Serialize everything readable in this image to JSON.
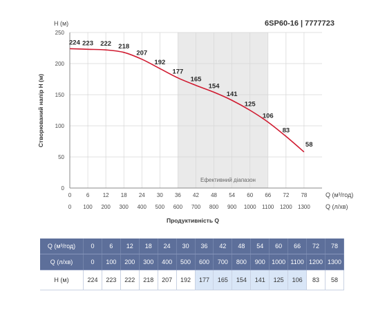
{
  "chart_data": {
    "type": "line",
    "title": "6SP60-16 | 7777723",
    "ylabel": "Створюваний напір Н (м)",
    "y_axis_caption": "Н (м)",
    "xlabel": "Продуктивність Q",
    "x_unit_primary": "Q (м³/год)",
    "x_unit_secondary": "Q (л/хв)",
    "ylim": [
      0,
      250
    ],
    "y_ticks": [
      "0",
      "50",
      "100",
      "150",
      "200",
      "250"
    ],
    "xlim": [
      0,
      84
    ],
    "x_ticks": [
      "0",
      "6",
      "12",
      "18",
      "24",
      "30",
      "36",
      "42",
      "48",
      "54",
      "60",
      "66",
      "72",
      "78"
    ],
    "x_ticks_secondary": [
      "0",
      "100",
      "200",
      "300",
      "400",
      "500",
      "600",
      "700",
      "800",
      "900",
      "1000",
      "1100",
      "1200",
      "1300"
    ],
    "efficient_range_label": "Ефективний діапазон",
    "efficient_range": [
      36,
      66
    ],
    "grid": true,
    "line_color": "#d0192f",
    "band_color": "#eaeaea",
    "series": [
      {
        "x": [
          0,
          6,
          12,
          18,
          24,
          30,
          36,
          42,
          48,
          54,
          60,
          66,
          72,
          78
        ],
        "values": [
          224,
          223,
          222,
          218,
          207,
          192,
          177,
          165,
          154,
          141,
          125,
          106,
          83,
          58
        ]
      }
    ]
  },
  "table": {
    "header_color": "#5d6f9a",
    "highlight_color": "#d9e6f7",
    "rows": [
      {
        "label": "Q (м³/год)",
        "cells": [
          "0",
          "6",
          "12",
          "18",
          "24",
          "30",
          "36",
          "42",
          "48",
          "54",
          "60",
          "66",
          "72",
          "78"
        ]
      },
      {
        "label": "Q (л/хв)",
        "cells": [
          "0",
          "100",
          "200",
          "300",
          "400",
          "500",
          "600",
          "700",
          "800",
          "900",
          "1000",
          "1100",
          "1200",
          "1300"
        ]
      },
      {
        "label": "Н (м)",
        "cells": [
          "224",
          "223",
          "222",
          "218",
          "207",
          "192",
          "177",
          "165",
          "154",
          "141",
          "125",
          "106",
          "83",
          "58"
        ]
      }
    ],
    "highlighted_columns": [
      6,
      7,
      8,
      9,
      10,
      11
    ]
  }
}
